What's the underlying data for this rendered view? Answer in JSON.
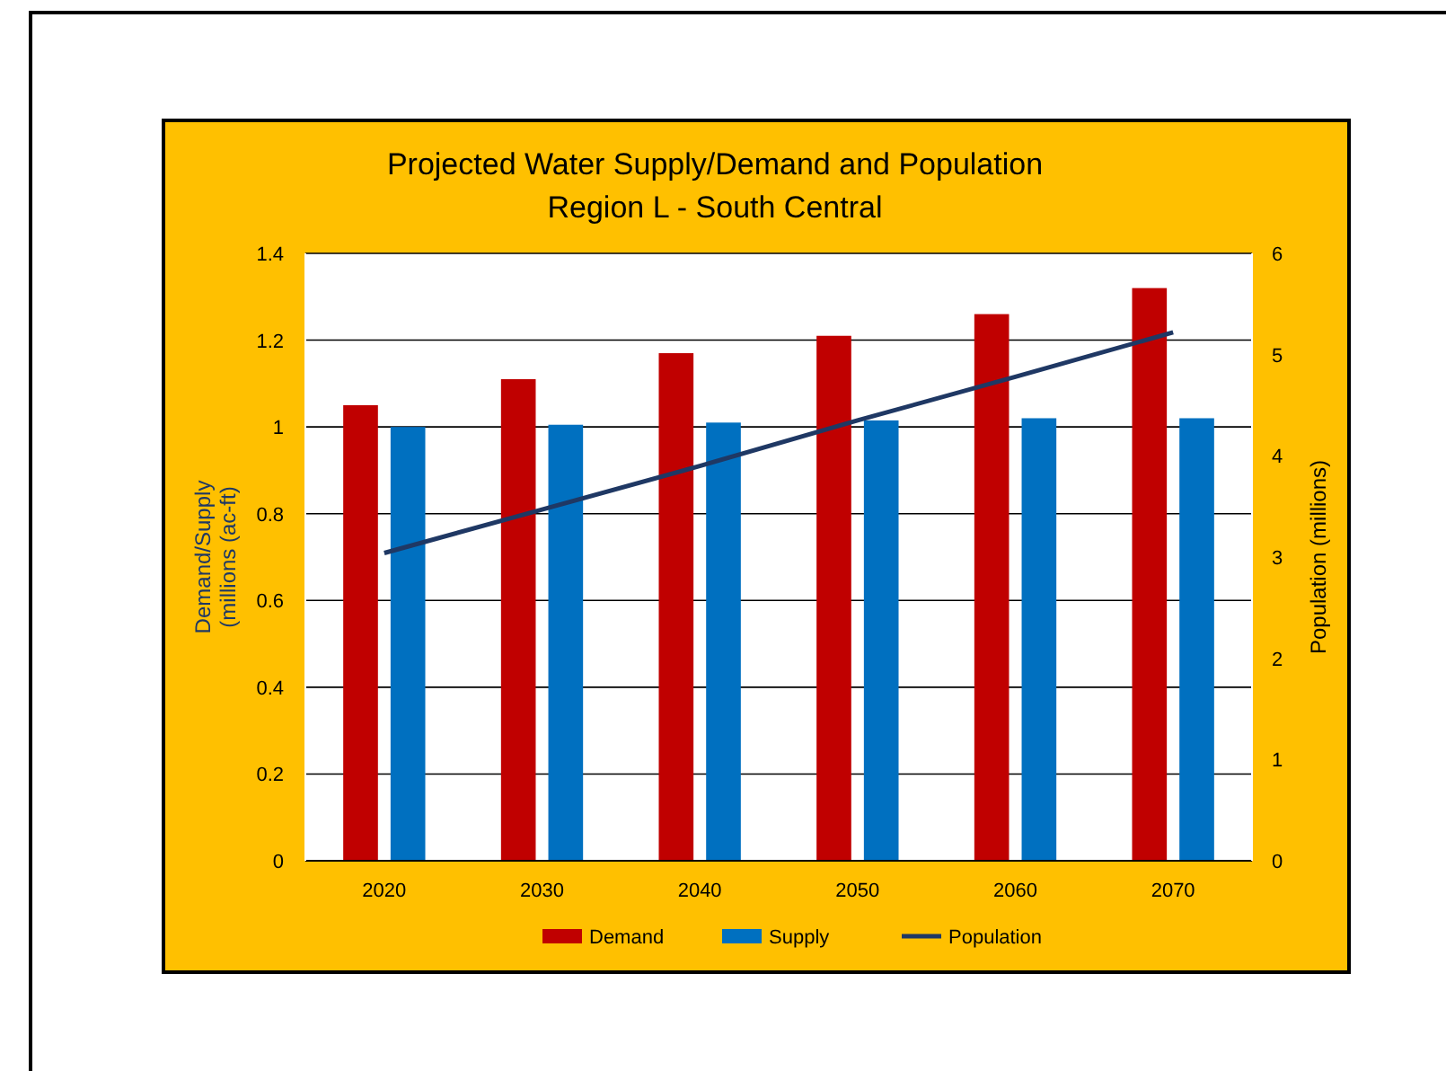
{
  "chart_data": {
    "type": "bar",
    "title": "Projected Water Supply/Demand and Population",
    "subtitle": "Region L - South Central",
    "ylabel": "Demand/Supply\n(millions (ac-ft)",
    "y2label": "Population (millions)",
    "categories": [
      "2020",
      "2030",
      "2040",
      "2050",
      "2060",
      "2070"
    ],
    "series": [
      {
        "name": "Demand",
        "color": "#c00000",
        "values": [
          1.05,
          1.11,
          1.17,
          1.21,
          1.26,
          1.32
        ]
      },
      {
        "name": "Supply",
        "color": "#0070c0",
        "values": [
          1.0,
          1.005,
          1.01,
          1.015,
          1.02,
          1.02
        ]
      },
      {
        "name": "Population",
        "type": "line",
        "axis": "y2",
        "color": "#1f3864",
        "values": [
          3.04,
          3.47,
          3.9,
          4.35,
          4.78,
          5.22
        ]
      }
    ],
    "ylim": [
      0,
      1.4
    ],
    "yticks": [
      0,
      0.2,
      0.4,
      0.6,
      0.8,
      1,
      1.2,
      1.4
    ],
    "y2lim": [
      0,
      6
    ],
    "y2ticks": [
      0,
      1,
      2,
      3,
      4,
      5,
      6
    ],
    "grid": "y",
    "legend": "bottom",
    "marker": "none",
    "line_style": "solid"
  }
}
